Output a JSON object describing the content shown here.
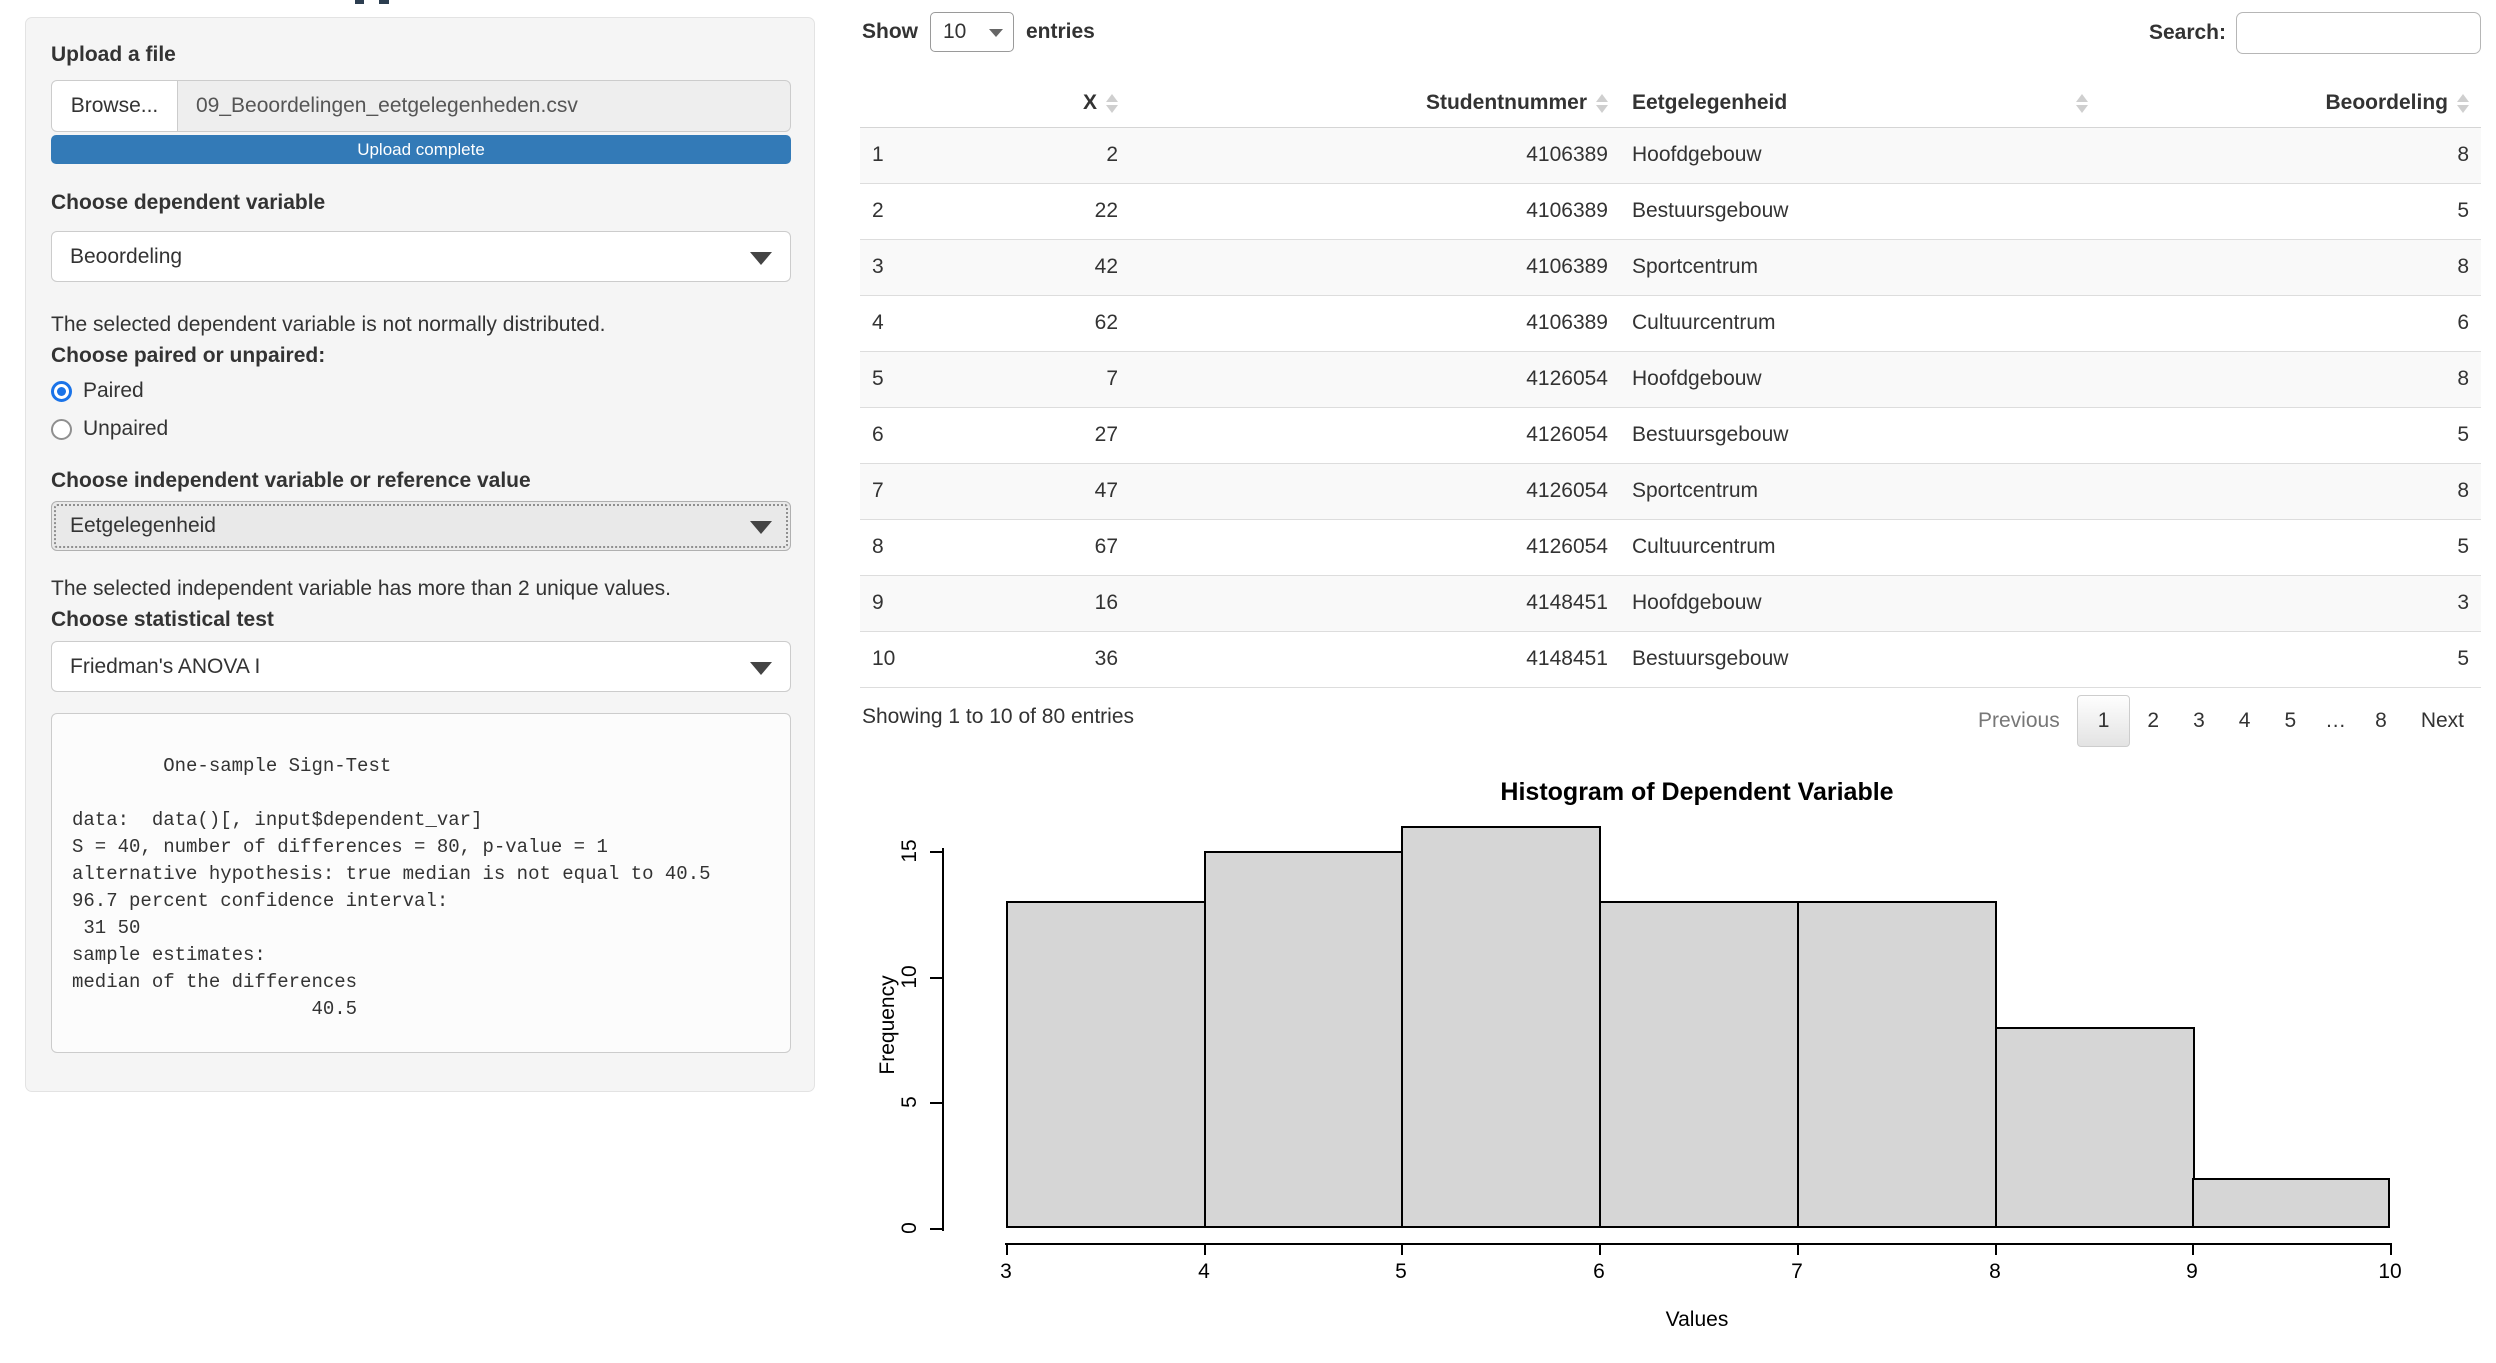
{
  "sidebar": {
    "upload_label": "Upload a file",
    "browse_button": "Browse...",
    "file_name": "09_Beoordelingen_eetgelegenheden.csv",
    "progress_text": "Upload complete",
    "dependent_label": "Choose dependent variable",
    "dependent_value": "Beoordeling",
    "normality_note": "The selected dependent variable is not normally distributed.",
    "paired_label": "Choose paired or unpaired:",
    "radio_options": [
      {
        "label": "Paired",
        "selected": true
      },
      {
        "label": "Unpaired",
        "selected": false
      }
    ],
    "independent_label": "Choose independent variable or reference value",
    "independent_value": "Eetgelegenheid",
    "unique_note": "The selected independent variable has more than 2 unique values.",
    "test_label": "Choose statistical test",
    "test_value": "Friedman's ANOVA I",
    "test_output_lines": [
      "",
      "        One-sample Sign-Test",
      "",
      "data:  data()[, input$dependent_var]",
      "S = 40, number of differences = 80, p-value = 1",
      "alternative hypothesis: true median is not equal to 40.5",
      "96.7 percent confidence interval:",
      " 31 50",
      "sample estimates:",
      "median of the differences ",
      "                     40.5 "
    ]
  },
  "table": {
    "length_label_before": "Show",
    "length_value": "10",
    "length_label_after": "entries",
    "search_label": "Search:",
    "search_value": "",
    "columns": [
      {
        "label": "",
        "align": "left",
        "sortable": false
      },
      {
        "label": "X",
        "align": "right",
        "sortable": true
      },
      {
        "label": "Studentnummer",
        "align": "right",
        "sortable": true
      },
      {
        "label": "Eetgelegenheid",
        "align": "left",
        "sortable": true
      },
      {
        "label": "Beoordeling",
        "align": "right",
        "sortable": true
      }
    ],
    "rows": [
      [
        "1",
        "2",
        "4106389",
        "Hoofdgebouw",
        "8"
      ],
      [
        "2",
        "22",
        "4106389",
        "Bestuursgebouw",
        "5"
      ],
      [
        "3",
        "42",
        "4106389",
        "Sportcentrum",
        "8"
      ],
      [
        "4",
        "62",
        "4106389",
        "Cultuurcentrum",
        "6"
      ],
      [
        "5",
        "7",
        "4126054",
        "Hoofdgebouw",
        "8"
      ],
      [
        "6",
        "27",
        "4126054",
        "Bestuursgebouw",
        "5"
      ],
      [
        "7",
        "47",
        "4126054",
        "Sportcentrum",
        "8"
      ],
      [
        "8",
        "67",
        "4126054",
        "Cultuurcentrum",
        "5"
      ],
      [
        "9",
        "16",
        "4148451",
        "Hoofdgebouw",
        "3"
      ],
      [
        "10",
        "36",
        "4148451",
        "Bestuursgebouw",
        "5"
      ]
    ],
    "info": "Showing 1 to 10 of 80 entries",
    "pagination": {
      "previous": "Previous",
      "pages": [
        "1",
        "2",
        "3",
        "4",
        "5",
        "…",
        "8"
      ],
      "current": "1",
      "next": "Next"
    }
  },
  "chart_data": {
    "type": "bar",
    "subtype": "histogram",
    "title": "Histogram of Dependent Variable",
    "xlabel": "Values",
    "ylabel": "Frequency",
    "bin_edges": [
      3,
      4,
      5,
      6,
      7,
      8,
      9,
      10
    ],
    "counts": [
      13,
      15,
      16,
      13,
      13,
      8,
      2
    ],
    "x_ticks": [
      3,
      4,
      5,
      6,
      7,
      8,
      9,
      10
    ],
    "y_ticks": [
      0,
      5,
      10,
      15
    ],
    "xlim": [
      3,
      10
    ],
    "ylim": [
      0,
      16
    ],
    "grid": false,
    "legend": false,
    "bar_fill": "#d6d6d6",
    "bar_border": "#000000"
  },
  "colors": {
    "progress_blue": "#337ab7",
    "radio_blue": "#1a73e8",
    "panel_bg": "#f5f5f5",
    "row_stripe": "#f9f9f9",
    "bar_fill": "#d6d6d6"
  }
}
